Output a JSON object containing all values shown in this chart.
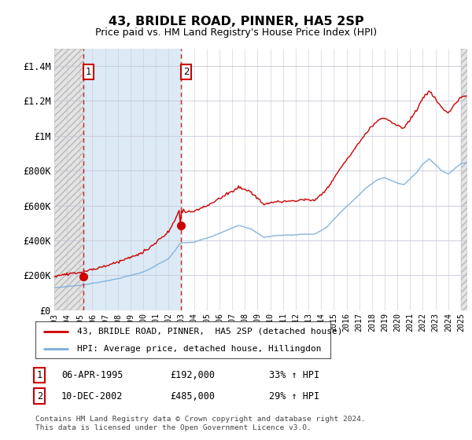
{
  "title": "43, BRIDLE ROAD, PINNER, HA5 2SP",
  "subtitle": "Price paid vs. HM Land Registry's House Price Index (HPI)",
  "transactions": [
    {
      "id": 1,
      "date": "06-APR-1995",
      "year": 1995.27,
      "price": 192000,
      "label": "33% ↑ HPI"
    },
    {
      "id": 2,
      "date": "10-DEC-2002",
      "year": 2002.94,
      "price": 485000,
      "label": "29% ↑ HPI"
    }
  ],
  "legend_line1": "43, BRIDLE ROAD, PINNER,  HA5 2SP (detached house)",
  "legend_line2": "HPI: Average price, detached house, Hillingdon",
  "footer": "Contains HM Land Registry data © Crown copyright and database right 2024.\nThis data is licensed under the Open Government Licence v3.0.",
  "xmin": 1993.0,
  "xmax": 2025.5,
  "ymin": 0,
  "ymax": 1500000,
  "yticks": [
    0,
    200000,
    400000,
    600000,
    800000,
    1000000,
    1200000,
    1400000
  ],
  "ytick_labels": [
    "£0",
    "£200K",
    "£400K",
    "£600K",
    "£800K",
    "£1M",
    "£1.2M",
    "£1.4M"
  ],
  "property_color": "#cc0000",
  "hpi_color": "#7aaddb",
  "hatch_color": "#cccccc",
  "shade_color": "#ddeeff",
  "marker_box_color": "#cc0000",
  "fig_bg": "#ffffff",
  "chart_bg": "#ffffff",
  "grid_color": "#c8c8d8",
  "hatch_region_color": "#e0e0e0"
}
